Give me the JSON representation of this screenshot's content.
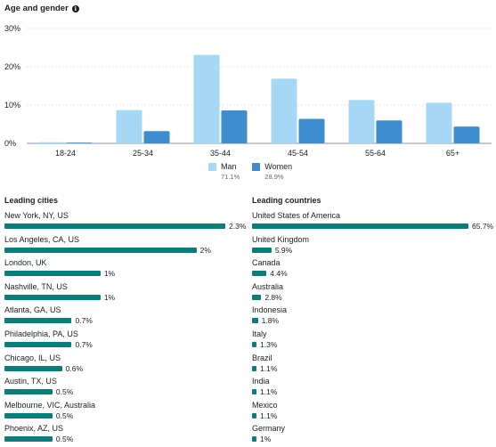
{
  "header": {
    "title": "Age and gender",
    "info_icon": "info-icon"
  },
  "chart_data": {
    "type": "bar",
    "categories": [
      "18-24",
      "25-34",
      "35-44",
      "45-54",
      "55-64",
      "65+"
    ],
    "series": [
      {
        "name": "Man",
        "color": "#a6d8f5",
        "values": [
          0.3,
          8.7,
          23.1,
          16.9,
          11.3,
          10.6
        ]
      },
      {
        "name": "Women",
        "color": "#3e8ecf",
        "values": [
          0.2,
          3.2,
          8.6,
          6.4,
          6.0,
          4.4
        ]
      }
    ],
    "yticks": [
      "0%",
      "10%",
      "20%",
      "30%"
    ],
    "ylim": [
      0,
      30
    ],
    "grid": true,
    "legend_position": "bottom"
  },
  "legend": {
    "man_label": "Man",
    "man_pct": "71.1%",
    "women_label": "Women",
    "women_pct": "28.9%"
  },
  "cities": {
    "title": "Leading cities",
    "items": [
      {
        "label": "New York, NY, US",
        "value": "2.3%",
        "num": 2.3
      },
      {
        "label": "Los Angeles, CA, US",
        "value": "2%",
        "num": 2.0
      },
      {
        "label": "London, UK",
        "value": "1%",
        "num": 1.0
      },
      {
        "label": "Nashville, TN, US",
        "value": "1%",
        "num": 1.0
      },
      {
        "label": "Atlanta, GA, US",
        "value": "0.7%",
        "num": 0.7
      },
      {
        "label": "Philadelphia, PA, US",
        "value": "0.7%",
        "num": 0.7
      },
      {
        "label": "Chicago, IL, US",
        "value": "0.6%",
        "num": 0.6
      },
      {
        "label": "Austin, TX, US",
        "value": "0.5%",
        "num": 0.5
      },
      {
        "label": "Melbourne, VIC, Australia",
        "value": "0.5%",
        "num": 0.5
      },
      {
        "label": "Phoenix, AZ, US",
        "value": "0.5%",
        "num": 0.5
      }
    ]
  },
  "countries": {
    "title": "Leading countries",
    "items": [
      {
        "label": "United States of America",
        "value": "65.7%",
        "num": 65.7
      },
      {
        "label": "United Kingdom",
        "value": "5.9%",
        "num": 5.9
      },
      {
        "label": "Canada",
        "value": "4.4%",
        "num": 4.4
      },
      {
        "label": "Australia",
        "value": "2.8%",
        "num": 2.8
      },
      {
        "label": "Indonesia",
        "value": "1.8%",
        "num": 1.8
      },
      {
        "label": "Italy",
        "value": "1.3%",
        "num": 1.3
      },
      {
        "label": "Brazil",
        "value": "1.1%",
        "num": 1.1
      },
      {
        "label": "India",
        "value": "1.1%",
        "num": 1.1
      },
      {
        "label": "Mexico",
        "value": "1.1%",
        "num": 1.1
      },
      {
        "label": "Germany",
        "value": "1%",
        "num": 1.0
      }
    ]
  },
  "bar_color": "#0a7e7a"
}
